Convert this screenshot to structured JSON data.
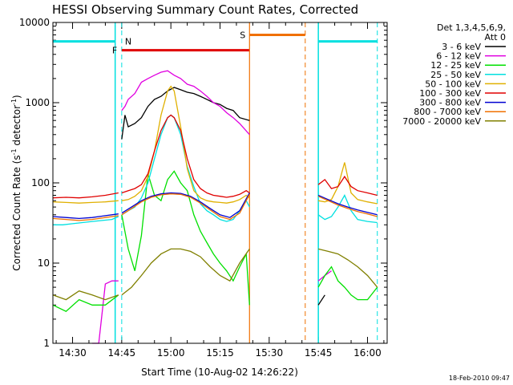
{
  "chart_data": {
    "type": "line",
    "title": "HESSI Observing Summary Count Rates, Corrected",
    "xlabel": "Start Time (10-Aug-02 14:26:22)",
    "ylabel": "Corrected Count Rate (s⁻¹ detector⁻¹)",
    "ylabel_main": "Corrected Count Rate (s",
    "ylabel_mid": " detector",
    "ylabel_end": ")",
    "ylabel_sup": "-1",
    "footer_date": "18-Feb-2010 09:47",
    "xlim": [
      "14:24",
      "16:06"
    ],
    "ylim": [
      1,
      10000
    ],
    "yscale": "log",
    "x_ticks": [
      "14:30",
      "14:45",
      "15:00",
      "15:15",
      "15:30",
      "15:45",
      "16:00"
    ],
    "y_ticks": [
      1,
      10,
      100,
      1000,
      10000
    ],
    "y_tick_labels": [
      "1",
      "10",
      "100",
      "1000",
      "10000"
    ],
    "legend": {
      "header1": "Det 1,3,4,5,6,9,",
      "header2": "Att 0",
      "entries": [
        {
          "label": "3 - 6 keV",
          "color": "#000000"
        },
        {
          "label": "6 - 12 keV",
          "color": "#e000e0"
        },
        {
          "label": "12 - 25 keV",
          "color": "#00e000"
        },
        {
          "label": "25 - 50 keV",
          "color": "#00e0e0"
        },
        {
          "label": "50 - 100 keV",
          "color": "#e0b000"
        },
        {
          "label": "100 - 300 keV",
          "color": "#e00000"
        },
        {
          "label": "300 - 800 keV",
          "color": "#0000d0"
        },
        {
          "label": "800 - 7000 keV",
          "color": "#f07000"
        },
        {
          "label": "7000 - 20000 keV",
          "color": "#808000"
        }
      ],
      "placement": "right"
    },
    "markers": {
      "night": {
        "label": "N",
        "color": "#00e0e0",
        "time": "14:45"
      },
      "flare": {
        "label": "F",
        "color": "#e00000",
        "start": "14:45",
        "end": "15:24",
        "level": 4500
      },
      "saa": {
        "label": "S",
        "color": "#f07000",
        "start": "15:24",
        "end": "15:41",
        "level": 7000
      },
      "night_bars": [
        {
          "start": "14:24",
          "end": "14:43",
          "level": 5800
        },
        {
          "start": "15:45",
          "end": "16:03",
          "level": 5800
        }
      ]
    },
    "series": [
      {
        "name": "3 - 6 keV",
        "color": "#000000",
        "segments": [
          {
            "x": [
              "14:45",
              "14:46",
              "14:47",
              "14:49",
              "14:51",
              "14:53",
              "14:55",
              "14:57",
              "14:59",
              "15:01",
              "15:03",
              "15:05",
              "15:07",
              "15:09",
              "15:11",
              "15:13",
              "15:15",
              "15:17",
              "15:19",
              "15:21",
              "15:24"
            ],
            "y": [
              350,
              700,
              500,
              550,
              650,
              900,
              1100,
              1200,
              1400,
              1550,
              1450,
              1350,
              1300,
              1200,
              1100,
              1000,
              950,
              850,
              800,
              650,
              600
            ]
          },
          {
            "x": [
              "15:45",
              "15:47"
            ],
            "y": [
              3,
              4
            ]
          }
        ]
      },
      {
        "name": "6 - 12 keV",
        "color": "#e000e0",
        "segments": [
          {
            "x": [
              "14:36",
              "14:38",
              "14:40",
              "14:42",
              "14:44"
            ],
            "y": [
              1,
              1,
              5.5,
              6,
              6
            ]
          },
          {
            "x": [
              "14:45",
              "14:46",
              "14:47",
              "14:49",
              "14:51",
              "14:53",
              "14:55",
              "14:57",
              "14:59",
              "15:01",
              "15:03",
              "15:05",
              "15:07",
              "15:09",
              "15:11",
              "15:13",
              "15:15",
              "15:17",
              "15:19",
              "15:21",
              "15:24"
            ],
            "y": [
              800,
              900,
              1100,
              1300,
              1800,
              2000,
              2200,
              2400,
              2500,
              2200,
              2000,
              1700,
              1600,
              1400,
              1200,
              1000,
              900,
              750,
              650,
              550,
              400
            ]
          },
          {
            "x": [
              "15:45",
              "15:47",
              "15:49"
            ],
            "y": [
              6,
              7,
              8
            ]
          }
        ]
      },
      {
        "name": "12 - 25 keV",
        "color": "#00e000",
        "segments": [
          {
            "x": [
              "14:24",
              "14:28",
              "14:32",
              "14:36",
              "14:40",
              "14:44"
            ],
            "y": [
              3,
              2.5,
              3.5,
              3,
              3,
              4
            ]
          },
          {
            "x": [
              "14:45",
              "14:47",
              "14:49",
              "14:51",
              "14:53",
              "14:55",
              "14:57",
              "14:59",
              "15:01",
              "15:03",
              "15:05",
              "15:07",
              "15:09",
              "15:11",
              "15:13",
              "15:15",
              "15:17",
              "15:19",
              "15:21",
              "15:23",
              "15:24"
            ],
            "y": [
              40,
              15,
              8,
              22,
              130,
              70,
              60,
              110,
              140,
              100,
              80,
              40,
              25,
              18,
              13,
              10,
              8,
              6,
              9,
              13,
              3
            ]
          },
          {
            "x": [
              "15:45",
              "15:47",
              "15:49",
              "15:51",
              "15:53",
              "15:55",
              "15:57",
              "16:00",
              "16:03"
            ],
            "y": [
              5,
              7,
              9,
              6,
              5,
              4,
              3.5,
              3.5,
              5
            ]
          }
        ]
      },
      {
        "name": "25 - 50 keV",
        "color": "#00e0e0",
        "segments": [
          {
            "x": [
              "14:24",
              "14:27",
              "14:30",
              "14:33",
              "14:36",
              "14:39",
              "14:42",
              "14:44"
            ],
            "y": [
              30,
              30,
              31,
              32,
              33,
              34,
              35,
              38
            ]
          },
          {
            "x": [
              "14:45",
              "14:47",
              "14:49",
              "14:51",
              "14:53",
              "14:55",
              "14:57",
              "14:59",
              "15:00",
              "15:01",
              "15:03",
              "15:05",
              "15:07",
              "15:09",
              "15:11",
              "15:13",
              "15:15",
              "15:17",
              "15:19",
              "15:21",
              "15:23",
              "15:24"
            ],
            "y": [
              40,
              45,
              50,
              65,
              100,
              200,
              400,
              650,
              700,
              650,
              400,
              160,
              90,
              55,
              45,
              40,
              35,
              33,
              35,
              45,
              60,
              50
            ]
          },
          {
            "x": [
              "15:45",
              "15:47",
              "15:49",
              "15:51",
              "15:53",
              "15:55",
              "15:57",
              "16:00",
              "16:03"
            ],
            "y": [
              40,
              35,
              38,
              50,
              70,
              45,
              35,
              33,
              32
            ]
          }
        ]
      },
      {
        "name": "50 - 100 keV",
        "color": "#e0b000",
        "segments": [
          {
            "x": [
              "14:24",
              "14:28",
              "14:32",
              "14:36",
              "14:40",
              "14:44"
            ],
            "y": [
              58,
              57,
              56,
              57,
              58,
              60
            ]
          },
          {
            "x": [
              "14:45",
              "14:47",
              "14:49",
              "14:51",
              "14:53",
              "14:55",
              "14:57",
              "14:59",
              "15:00",
              "15:01",
              "15:03",
              "15:05",
              "15:07",
              "15:09",
              "15:11",
              "15:13",
              "15:15",
              "15:17",
              "15:19",
              "15:21",
              "15:23",
              "15:24"
            ],
            "y": [
              60,
              62,
              68,
              80,
              120,
              250,
              700,
              1400,
              1600,
              1400,
              500,
              150,
              80,
              65,
              60,
              58,
              57,
              56,
              58,
              62,
              70,
              65
            ]
          },
          {
            "x": [
              "15:45",
              "15:47",
              "15:49",
              "15:51",
              "15:53",
              "15:55",
              "15:57",
              "16:00",
              "16:03"
            ],
            "y": [
              60,
              58,
              62,
              90,
              180,
              75,
              62,
              58,
              55
            ]
          }
        ]
      },
      {
        "name": "100 - 300 keV",
        "color": "#e00000",
        "segments": [
          {
            "x": [
              "14:24",
              "14:28",
              "14:32",
              "14:36",
              "14:40",
              "14:44"
            ],
            "y": [
              65,
              66,
              65,
              67,
              70,
              75
            ]
          },
          {
            "x": [
              "14:45",
              "14:47",
              "14:49",
              "14:51",
              "14:53",
              "14:55",
              "14:57",
              "14:59",
              "15:00",
              "15:01",
              "15:03",
              "15:05",
              "15:07",
              "15:09",
              "15:11",
              "15:13",
              "15:15",
              "15:17",
              "15:19",
              "15:21",
              "15:23",
              "15:24"
            ],
            "y": [
              75,
              80,
              85,
              95,
              130,
              250,
              450,
              650,
              700,
              650,
              450,
              200,
              110,
              85,
              75,
              70,
              68,
              66,
              68,
              72,
              80,
              75
            ]
          },
          {
            "x": [
              "15:45",
              "15:47",
              "15:49",
              "15:51",
              "15:53",
              "15:55",
              "15:57",
              "16:00",
              "16:03"
            ],
            "y": [
              95,
              110,
              85,
              90,
              120,
              90,
              80,
              75,
              70
            ]
          }
        ]
      },
      {
        "name": "300 - 800 keV",
        "color": "#0000d0",
        "segments": [
          {
            "x": [
              "14:24",
              "14:28",
              "14:32",
              "14:36",
              "14:40",
              "14:44"
            ],
            "y": [
              38,
              37,
              36,
              37,
              39,
              41
            ]
          },
          {
            "x": [
              "14:45",
              "14:48",
              "14:51",
              "14:54",
              "14:57",
              "15:00",
              "15:03",
              "15:06",
              "15:09",
              "15:12",
              "15:15",
              "15:18",
              "15:21",
              "15:24"
            ],
            "y": [
              42,
              50,
              60,
              68,
              73,
              75,
              74,
              68,
              58,
              48,
              40,
              37,
              45,
              75
            ]
          },
          {
            "x": [
              "15:45",
              "15:48",
              "15:51",
              "15:54",
              "15:57",
              "16:00",
              "16:03"
            ],
            "y": [
              70,
              62,
              55,
              50,
              46,
              43,
              40
            ]
          }
        ]
      },
      {
        "name": "800 - 7000 keV",
        "color": "#f07000",
        "segments": [
          {
            "x": [
              "14:24",
              "14:28",
              "14:32",
              "14:36",
              "14:40",
              "14:44"
            ],
            "y": [
              36,
              35,
              34,
              35,
              37,
              39
            ]
          },
          {
            "x": [
              "14:45",
              "14:48",
              "14:51",
              "14:54",
              "14:57",
              "15:00",
              "15:03",
              "15:06",
              "15:09",
              "15:12",
              "15:15",
              "15:18",
              "15:21",
              "15:24"
            ],
            "y": [
              40,
              48,
              58,
              66,
              71,
              73,
              72,
              66,
              56,
              46,
              38,
              35,
              42,
              72
            ]
          },
          {
            "x": [
              "15:45",
              "15:48",
              "15:51",
              "15:54",
              "15:57",
              "16:00",
              "16:03"
            ],
            "y": [
              68,
              60,
              53,
              48,
              44,
              41,
              38
            ]
          }
        ]
      },
      {
        "name": "7000 - 20000 keV",
        "color": "#808000",
        "segments": [
          {
            "x": [
              "14:24",
              "14:28",
              "14:32",
              "14:36",
              "14:40",
              "14:44"
            ],
            "y": [
              4,
              3.5,
              4.5,
              4,
              3.5,
              4
            ]
          },
          {
            "x": [
              "14:45",
              "14:48",
              "14:51",
              "14:54",
              "14:57",
              "15:00",
              "15:03",
              "15:06",
              "15:09",
              "15:12",
              "15:15",
              "15:18",
              "15:21",
              "15:24"
            ],
            "y": [
              4,
              5,
              7,
              10,
              13,
              15,
              15,
              14,
              12,
              9,
              7,
              6,
              10,
              15
            ]
          },
          {
            "x": [
              "15:45",
              "15:48",
              "15:51",
              "15:54",
              "15:57",
              "16:00",
              "16:03"
            ],
            "y": [
              15,
              14,
              13,
              11,
              9,
              7,
              5
            ]
          }
        ]
      }
    ]
  }
}
